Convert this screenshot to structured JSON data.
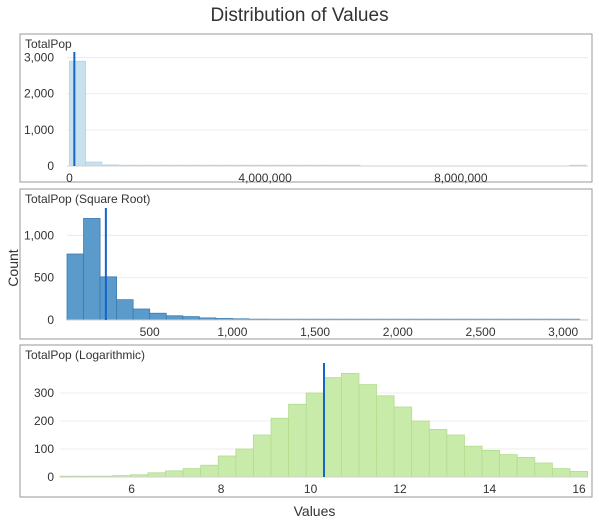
{
  "title": "Distribution of Values",
  "xlabel": "Values",
  "ylabel": "Count",
  "colors": {
    "panel1_fill": "#c9e1ef",
    "panel1_stroke": "#b3d3e6",
    "panel2_fill": "#5b9bcc",
    "panel2_stroke": "#3b7cb0",
    "panel3_fill": "#c9ebaa",
    "panel3_stroke": "#b2dc8e",
    "mean_line": "#1565c8"
  },
  "chart_data": [
    {
      "type": "bar",
      "title": "TotalPop",
      "xlim": [
        -50000,
        10600000
      ],
      "ylim": [
        0,
        3100
      ],
      "xticks": [
        0,
        4000000,
        8000000
      ],
      "xtick_labels": [
        "0",
        "4,000,000",
        "8,000,000"
      ],
      "yticks": [
        0,
        1000,
        2000,
        3000
      ],
      "ytick_labels": [
        "0",
        "1,000",
        "2,000",
        "3,000"
      ],
      "bin_start": 0,
      "bin_width": 330000,
      "counts": [
        2900,
        110,
        30,
        10,
        6,
        4,
        3,
        2,
        2,
        1,
        1,
        1,
        1,
        1,
        1,
        1,
        1,
        1,
        0,
        0,
        0,
        0,
        0,
        0,
        0,
        0,
        0,
        0,
        0,
        0,
        0,
        1
      ],
      "mean": 100000
    },
    {
      "type": "bar",
      "title": "TotalPop (Square Root)",
      "xlim": [
        0,
        3150
      ],
      "ylim": [
        0,
        1300
      ],
      "xticks": [
        500,
        1000,
        1500,
        2000,
        2500,
        3000
      ],
      "xtick_labels": [
        "500",
        "1,000",
        "1,500",
        "2,000",
        "2,500",
        "3,000"
      ],
      "yticks": [
        0,
        500,
        1000
      ],
      "ytick_labels": [
        "0",
        "500",
        "1,000"
      ],
      "bin_start": 0,
      "bin_width": 100,
      "counts": [
        780,
        1200,
        510,
        240,
        130,
        80,
        50,
        40,
        25,
        18,
        14,
        10,
        8,
        7,
        6,
        5,
        4,
        3,
        3,
        3,
        2,
        2,
        2,
        2,
        1,
        1,
        1,
        1,
        1,
        1,
        1
      ],
      "mean": 235
    },
    {
      "type": "bar",
      "title": "TotalPop (Logarithmic)",
      "xlim": [
        4.4,
        16.2
      ],
      "ylim": [
        0,
        400
      ],
      "xticks": [
        6,
        8,
        10,
        12,
        14,
        16
      ],
      "xtick_labels": [
        "6",
        "8",
        "10",
        "12",
        "14",
        "16"
      ],
      "yticks": [
        0,
        100,
        200,
        300
      ],
      "ytick_labels": [
        "0",
        "100",
        "200",
        "300"
      ],
      "bin_start": 4.4,
      "bin_width": 0.393,
      "counts": [
        2,
        2,
        3,
        5,
        8,
        15,
        22,
        30,
        42,
        75,
        100,
        150,
        210,
        260,
        300,
        355,
        370,
        330,
        290,
        250,
        200,
        170,
        150,
        110,
        95,
        80,
        70,
        50,
        30,
        20
      ],
      "mean": 10.3
    }
  ]
}
